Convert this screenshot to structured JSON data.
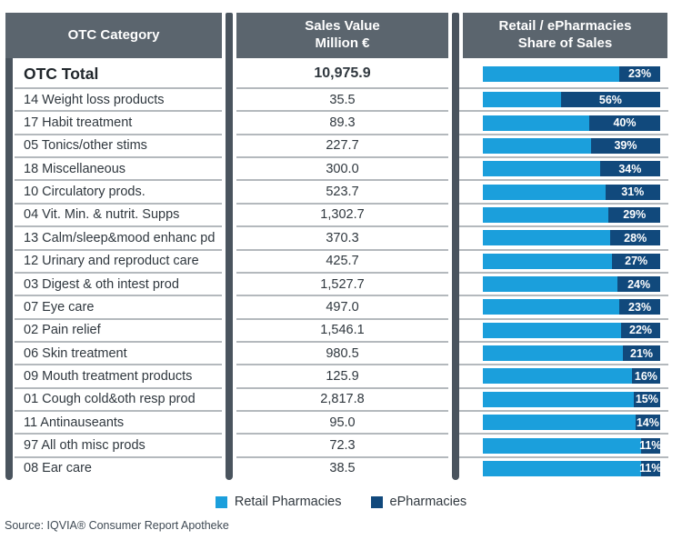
{
  "columns": {
    "category_header": "OTC Category",
    "sales_header_line1": "Sales Value",
    "sales_header_line2": "Million €",
    "share_header_line1": "Retail / ePharmacies",
    "share_header_line2": "Share of Sales"
  },
  "rows": [
    {
      "category": "OTC Total",
      "value": "10,975.9",
      "epharmacy_pct": 23,
      "total": true
    },
    {
      "category": "14 Weight loss products",
      "value": "35.5",
      "epharmacy_pct": 56
    },
    {
      "category": "17 Habit treatment",
      "value": "89.3",
      "epharmacy_pct": 40
    },
    {
      "category": "05 Tonics/other stims",
      "value": "227.7",
      "epharmacy_pct": 39
    },
    {
      "category": "18 Miscellaneous",
      "value": "300.0",
      "epharmacy_pct": 34
    },
    {
      "category": "10 Circulatory prods.",
      "value": "523.7",
      "epharmacy_pct": 31
    },
    {
      "category": "04 Vit. Min. & nutrit. Supps",
      "value": "1,302.7",
      "epharmacy_pct": 29
    },
    {
      "category": "13 Calm/sleep&mood enhanc pd",
      "value": "370.3",
      "epharmacy_pct": 28
    },
    {
      "category": "12 Urinary and reproduct care",
      "value": "425.7",
      "epharmacy_pct": 27
    },
    {
      "category": "03 Digest & oth intest prod",
      "value": "1,527.7",
      "epharmacy_pct": 24
    },
    {
      "category": "07 Eye care",
      "value": "497.0",
      "epharmacy_pct": 23
    },
    {
      "category": "02 Pain relief",
      "value": "1,546.1",
      "epharmacy_pct": 22
    },
    {
      "category": "06 Skin treatment",
      "value": "980.5",
      "epharmacy_pct": 21
    },
    {
      "category": "09 Mouth treatment products",
      "value": "125.9",
      "epharmacy_pct": 16
    },
    {
      "category": "01 Cough cold&oth resp prod",
      "value": "2,817.8",
      "epharmacy_pct": 15
    },
    {
      "category": "11 Antinauseants",
      "value": "95.0",
      "epharmacy_pct": 14
    },
    {
      "category": "97 All oth misc prods",
      "value": "72.3",
      "epharmacy_pct": 11
    },
    {
      "category": "08 Ear care",
      "value": "38.5",
      "epharmacy_pct": 11
    }
  ],
  "chart_data": {
    "type": "bar",
    "orientation": "horizontal",
    "stacked": true,
    "title": "Retail / ePharmacies Share of Sales",
    "categories": [
      "OTC Total",
      "14 Weight loss products",
      "17 Habit treatment",
      "05 Tonics/other stims",
      "18 Miscellaneous",
      "10 Circulatory prods.",
      "04 Vit. Min. & nutrit. Supps",
      "13 Calm/sleep&mood enhanc pd",
      "12 Urinary and reproduct care",
      "03 Digest & oth intest prod",
      "07 Eye care",
      "02 Pain relief",
      "06 Skin treatment",
      "09 Mouth treatment products",
      "01 Cough cold&oth resp prod",
      "11 Antinauseants",
      "97 All oth misc prods",
      "08 Ear care"
    ],
    "sales_value_million_eur": [
      10975.9,
      35.5,
      89.3,
      227.7,
      300.0,
      523.7,
      1302.7,
      370.3,
      425.7,
      1527.7,
      497.0,
      1546.1,
      980.5,
      125.9,
      2817.8,
      95.0,
      72.3,
      38.5
    ],
    "series": [
      {
        "name": "Retail Pharmacies",
        "unit": "% share",
        "color": "#1B9FDC",
        "values": [
          77,
          44,
          60,
          61,
          66,
          69,
          71,
          72,
          73,
          76,
          77,
          78,
          79,
          84,
          85,
          86,
          89,
          89
        ]
      },
      {
        "name": "ePharmacies",
        "unit": "% share",
        "color": "#11497C",
        "values": [
          23,
          56,
          40,
          39,
          34,
          31,
          29,
          28,
          27,
          24,
          23,
          22,
          21,
          16,
          15,
          14,
          11,
          11
        ]
      }
    ],
    "xlim": [
      0,
      100
    ],
    "grid": false,
    "legend_position": "bottom",
    "value_label_format": "ePharmacy % shown in white on dark segment"
  },
  "legend": {
    "items": [
      {
        "label": "Retail Pharmacies",
        "color": "#1B9FDC"
      },
      {
        "label": "ePharmacies",
        "color": "#11497C"
      }
    ]
  },
  "source": "Source: IQVIA® Consumer Report Apotheke",
  "colors": {
    "header_bg": "#5B656E",
    "divider": "#4A545E",
    "retail": "#1B9FDC",
    "epharmacy": "#11497C",
    "row_line": "#B4B9BD"
  }
}
